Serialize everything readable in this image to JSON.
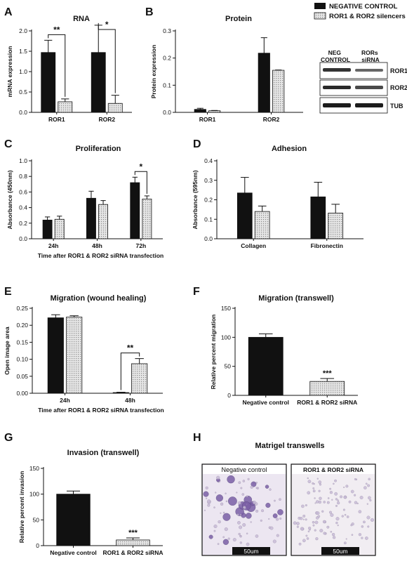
{
  "legend": {
    "entries": [
      {
        "label": "NEGATIVE CONTROL",
        "fill": "#111111"
      },
      {
        "label": "ROR1 & ROR2 silencers",
        "fill": "#cfcfcf"
      }
    ]
  },
  "colors": {
    "control": "#111111",
    "silencer": "#cfcfcf",
    "axis": "#111111"
  },
  "chart_data": [
    {
      "panel": "A",
      "type": "bar",
      "title": "RNA",
      "ylabel": "mRNA expression",
      "xlabel": "",
      "ylim": [
        0,
        2.0
      ],
      "yticks": [
        "0.0",
        "0.5",
        "1.0",
        "1.5",
        "2.0"
      ],
      "ytick_values": [
        0,
        0.5,
        1.0,
        1.5,
        2.0
      ],
      "categories": [
        "ROR1",
        "ROR2"
      ],
      "series": [
        {
          "name": "NEGATIVE CONTROL",
          "values": [
            1.47,
            1.47
          ],
          "errors": [
            0.3,
            0.67
          ]
        },
        {
          "name": "ROR1 & ROR2 silencers",
          "values": [
            0.26,
            0.22
          ],
          "errors": [
            0.07,
            0.2
          ]
        }
      ],
      "significance": [
        {
          "category": 0,
          "mark": "**"
        },
        {
          "category": 1,
          "mark": "*"
        }
      ]
    },
    {
      "panel": "B",
      "type": "bar",
      "title": "Protein",
      "ylabel": "Protein expression",
      "xlabel": "",
      "ylim": [
        0,
        0.3
      ],
      "yticks": [
        "0.0",
        "0.1",
        "0.2",
        "0.3"
      ],
      "ytick_values": [
        0,
        0.1,
        0.2,
        0.3
      ],
      "categories": [
        "ROR1",
        "ROR2"
      ],
      "series": [
        {
          "name": "NEGATIVE CONTROL",
          "values": [
            0.011,
            0.218
          ],
          "errors": [
            0.004,
            0.057
          ]
        },
        {
          "name": "ROR1 & ROR2 silencers",
          "values": [
            0.006,
            0.155
          ],
          "errors": [
            0.001,
            0.001
          ]
        }
      ],
      "significance": []
    },
    {
      "panel": "C",
      "type": "bar",
      "title": "Proliferation",
      "ylabel": "Absorbance (450nm)",
      "xlabel": "Time after ROR1 & ROR2 siRNA transfection",
      "ylim": [
        0,
        1.0
      ],
      "yticks": [
        "0.0",
        "0.2",
        "0.4",
        "0.6",
        "0.8",
        "1.0"
      ],
      "ytick_values": [
        0,
        0.2,
        0.4,
        0.6,
        0.8,
        1.0
      ],
      "categories": [
        "24h",
        "48h",
        "72h"
      ],
      "series": [
        {
          "name": "NEGATIVE CONTROL",
          "values": [
            0.24,
            0.52,
            0.72
          ],
          "errors": [
            0.04,
            0.09,
            0.07
          ]
        },
        {
          "name": "ROR1 & ROR2 silencers",
          "values": [
            0.25,
            0.44,
            0.51
          ],
          "errors": [
            0.04,
            0.05,
            0.04
          ]
        }
      ],
      "significance": [
        {
          "category": 2,
          "mark": "*"
        }
      ]
    },
    {
      "panel": "D",
      "type": "bar",
      "title": "Adhesion",
      "ylabel": "Absorbance (595nm)",
      "xlabel": "",
      "ylim": [
        0,
        0.4
      ],
      "yticks": [
        "0.0",
        "0.1",
        "0.2",
        "0.3",
        "0.4"
      ],
      "ytick_values": [
        0,
        0.1,
        0.2,
        0.3,
        0.4
      ],
      "categories": [
        "Collagen",
        "Fibronectin"
      ],
      "series": [
        {
          "name": "NEGATIVE CONTROL",
          "values": [
            0.235,
            0.215
          ],
          "errors": [
            0.08,
            0.075
          ]
        },
        {
          "name": "ROR1 & ROR2 silencers",
          "values": [
            0.14,
            0.132
          ],
          "errors": [
            0.028,
            0.045
          ]
        }
      ],
      "significance": []
    },
    {
      "panel": "E",
      "type": "bar",
      "title": "Migration (wound healing)",
      "ylabel": "Open image area",
      "xlabel": "Time after ROR1 & ROR2 siRNA transfection",
      "ylim": [
        0,
        0.25
      ],
      "yticks": [
        "0.00",
        "0.05",
        "0.10",
        "0.15",
        "0.20",
        "0.25"
      ],
      "ytick_values": [
        0,
        0.05,
        0.1,
        0.15,
        0.2,
        0.25
      ],
      "categories": [
        "24h",
        "48h"
      ],
      "series": [
        {
          "name": "NEGATIVE CONTROL",
          "values": [
            0.222,
            0.002
          ],
          "errors": [
            0.009,
            0.001
          ]
        },
        {
          "name": "ROR1 & ROR2 silencers",
          "values": [
            0.224,
            0.087
          ],
          "errors": [
            0.004,
            0.015
          ]
        }
      ],
      "significance": [
        {
          "category": 1,
          "mark": "**"
        }
      ]
    },
    {
      "panel": "F",
      "type": "bar",
      "title": "Migration (transwell)",
      "ylabel": "Relative percent migration",
      "xlabel": "",
      "ylim": [
        0,
        150
      ],
      "yticks": [
        "0",
        "50",
        "100",
        "150"
      ],
      "ytick_values": [
        0,
        50,
        100,
        150
      ],
      "categories": [
        "Negative control",
        "ROR1 & ROR2 siRNA"
      ],
      "series": [
        {
          "name": "",
          "values": [
            100,
            24
          ],
          "errors": [
            6,
            5
          ],
          "fills": [
            "#111111",
            "#cfcfcf"
          ]
        }
      ],
      "significance": [
        {
          "category": 1,
          "mark": "***",
          "single": true
        }
      ]
    },
    {
      "panel": "G",
      "type": "bar",
      "title": "Invasion (transwell)",
      "ylabel": "Relative percent invasion",
      "xlabel": "",
      "ylim": [
        0,
        150
      ],
      "yticks": [
        "0",
        "50",
        "100",
        "150"
      ],
      "ytick_values": [
        0,
        50,
        100,
        150
      ],
      "categories": [
        "Negative control",
        "ROR1 & ROR2 siRNA"
      ],
      "series": [
        {
          "name": "",
          "values": [
            100,
            11
          ],
          "errors": [
            6,
            4
          ],
          "fills": [
            "#111111",
            "#cfcfcf"
          ]
        }
      ],
      "significance": [
        {
          "category": 1,
          "mark": "***",
          "single": true
        }
      ]
    }
  ],
  "western_blot": {
    "lane_labels": [
      "NEG CONTROL",
      "RORs siRNA"
    ],
    "rows": [
      "ROR1",
      "ROR2",
      "TUB"
    ]
  },
  "matrigel": {
    "title": "Matrigel transwells",
    "images": [
      {
        "label": "Negative control",
        "scale": "50um"
      },
      {
        "label": "ROR1 & ROR2 siRNA",
        "scale": "50um"
      }
    ]
  },
  "panel_letters": [
    "A",
    "B",
    "C",
    "D",
    "E",
    "F",
    "G",
    "H"
  ]
}
